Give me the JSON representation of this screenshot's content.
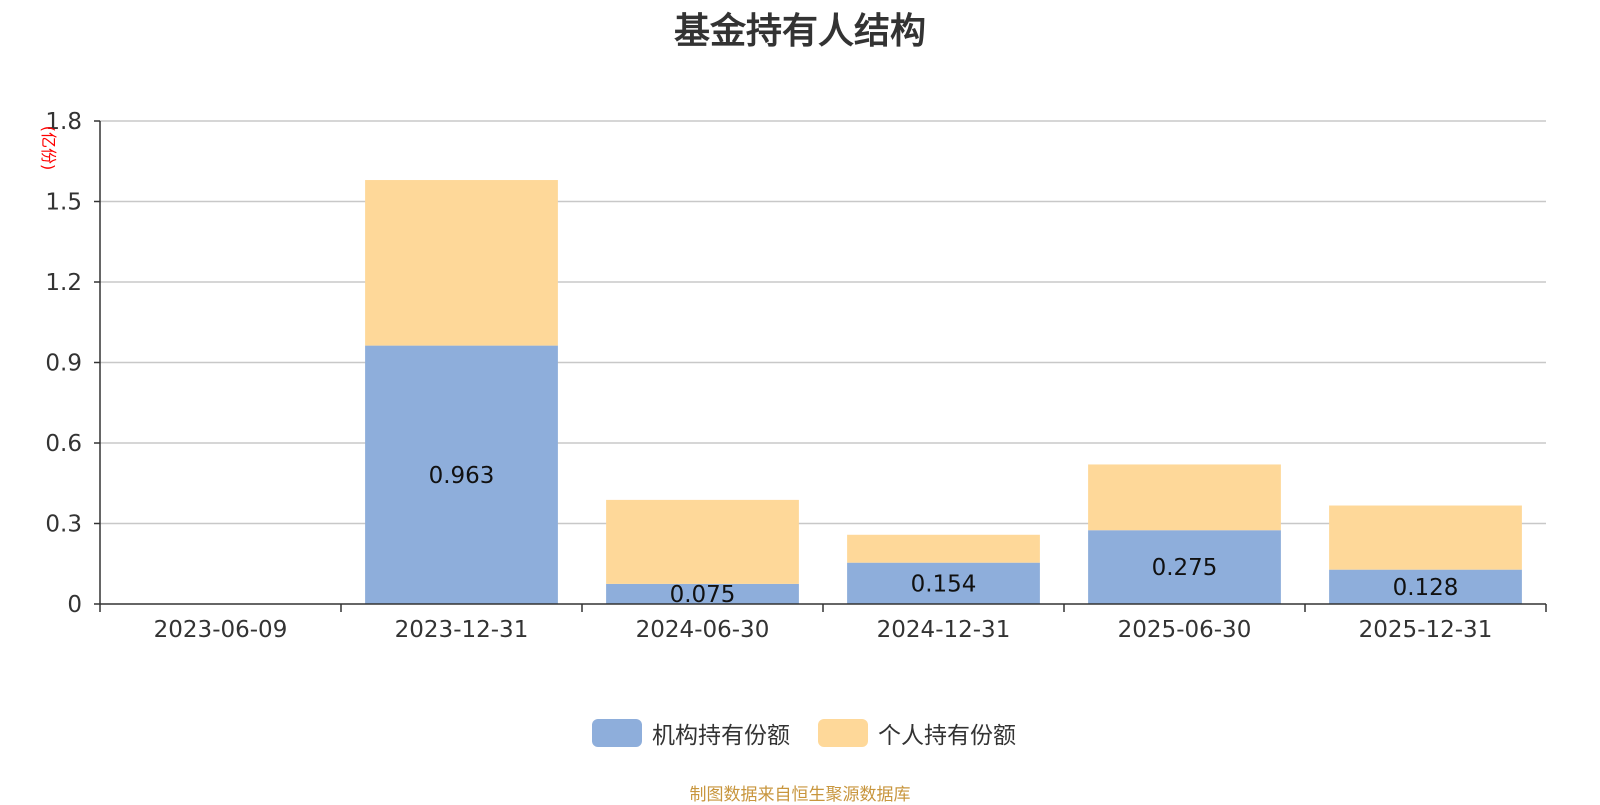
{
  "chart_data": {
    "type": "bar",
    "stacked": true,
    "title": "基金持有人结构",
    "ylabel": "(亿份)",
    "xlabel": "",
    "ylim": [
      0,
      1.8
    ],
    "yticks": [
      "0",
      "0.3",
      "0.6",
      "0.9",
      "1.2",
      "1.5",
      "1.8"
    ],
    "grid": true,
    "legend_position": "bottom",
    "categories": [
      "2023-06-09",
      "2023-12-31",
      "2024-06-30",
      "2024-12-31",
      "2025-06-30",
      "2025-12-31"
    ],
    "series": [
      {
        "name": "机构持有份额",
        "color": "#8eaedb",
        "values": [
          0,
          0.963,
          0.075,
          0.154,
          0.275,
          0.128
        ],
        "labels": [
          "",
          "0.963",
          "0.075",
          "0.154",
          "0.275",
          "0.128"
        ]
      },
      {
        "name": "个人持有份额",
        "color": "#fed899",
        "values": [
          0,
          0.617,
          0.313,
          0.104,
          0.245,
          0.239
        ]
      }
    ]
  },
  "source": "制图数据来自恒生聚源数据库"
}
